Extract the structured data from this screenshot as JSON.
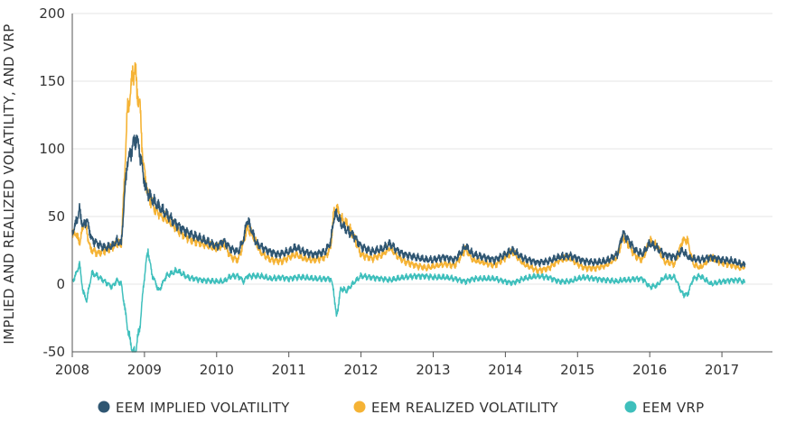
{
  "chart_data": {
    "type": "line",
    "title": "",
    "xlabel": "",
    "ylabel": "IMPLIED AND REALIZED VOLATILITY, AND VRP",
    "xlim": [
      2008.0,
      2017.7
    ],
    "ylim": [
      -50,
      200
    ],
    "x_ticks": [
      {
        "label": "2008",
        "value": 2008.0
      },
      {
        "label": "2009",
        "value": 2009.0
      },
      {
        "label": "2010",
        "value": 2010.0
      },
      {
        "label": "2011",
        "value": 2011.0
      },
      {
        "label": "2012",
        "value": 2012.0
      },
      {
        "label": "2013",
        "value": 2013.0
      },
      {
        "label": "2014",
        "value": 2014.0
      },
      {
        "label": "2015",
        "value": 2015.0
      },
      {
        "label": "2016",
        "value": 2016.0
      },
      {
        "label": "2017",
        "value": 2017.0
      }
    ],
    "y_ticks": [
      -50,
      0,
      50,
      100,
      150,
      200
    ],
    "grid": "horizontal",
    "legend": "bottom",
    "series": [
      {
        "name": "EEM IMPLIED VOLATILITY",
        "color": "#2f5672",
        "points": [
          [
            2008.0,
            38
          ],
          [
            2008.05,
            45
          ],
          [
            2008.1,
            55
          ],
          [
            2008.15,
            42
          ],
          [
            2008.2,
            48
          ],
          [
            2008.27,
            33
          ],
          [
            2008.35,
            30
          ],
          [
            2008.45,
            27
          ],
          [
            2008.55,
            28
          ],
          [
            2008.62,
            32
          ],
          [
            2008.68,
            30
          ],
          [
            2008.72,
            62
          ],
          [
            2008.76,
            90
          ],
          [
            2008.8,
            95
          ],
          [
            2008.85,
            105
          ],
          [
            2008.89,
            108
          ],
          [
            2008.93,
            100
          ],
          [
            2008.97,
            85
          ],
          [
            2009.02,
            70
          ],
          [
            2009.1,
            63
          ],
          [
            2009.2,
            57
          ],
          [
            2009.3,
            52
          ],
          [
            2009.45,
            44
          ],
          [
            2009.6,
            38
          ],
          [
            2009.8,
            33
          ],
          [
            2010.0,
            28
          ],
          [
            2010.1,
            32
          ],
          [
            2010.2,
            26
          ],
          [
            2010.3,
            24
          ],
          [
            2010.38,
            34
          ],
          [
            2010.42,
            48
          ],
          [
            2010.47,
            42
          ],
          [
            2010.55,
            30
          ],
          [
            2010.7,
            25
          ],
          [
            2010.85,
            22
          ],
          [
            2011.0,
            24
          ],
          [
            2011.1,
            27
          ],
          [
            2011.2,
            24
          ],
          [
            2011.35,
            22
          ],
          [
            2011.5,
            24
          ],
          [
            2011.58,
            31
          ],
          [
            2011.62,
            48
          ],
          [
            2011.66,
            52
          ],
          [
            2011.72,
            45
          ],
          [
            2011.8,
            40
          ],
          [
            2011.9,
            36
          ],
          [
            2012.0,
            28
          ],
          [
            2012.15,
            24
          ],
          [
            2012.3,
            26
          ],
          [
            2012.4,
            30
          ],
          [
            2012.5,
            25
          ],
          [
            2012.6,
            22
          ],
          [
            2012.75,
            20
          ],
          [
            2012.9,
            18
          ],
          [
            2013.0,
            18
          ],
          [
            2013.15,
            20
          ],
          [
            2013.3,
            18
          ],
          [
            2013.45,
            28
          ],
          [
            2013.55,
            22
          ],
          [
            2013.7,
            20
          ],
          [
            2013.85,
            18
          ],
          [
            2014.0,
            22
          ],
          [
            2014.1,
            25
          ],
          [
            2014.25,
            19
          ],
          [
            2014.45,
            16
          ],
          [
            2014.6,
            17
          ],
          [
            2014.75,
            20
          ],
          [
            2014.9,
            21
          ],
          [
            2015.0,
            19
          ],
          [
            2015.1,
            17
          ],
          [
            2015.25,
            16
          ],
          [
            2015.4,
            17
          ],
          [
            2015.55,
            22
          ],
          [
            2015.63,
            38
          ],
          [
            2015.7,
            33
          ],
          [
            2015.8,
            25
          ],
          [
            2015.9,
            22
          ],
          [
            2016.0,
            30
          ],
          [
            2016.1,
            27
          ],
          [
            2016.2,
            22
          ],
          [
            2016.35,
            20
          ],
          [
            2016.45,
            25
          ],
          [
            2016.55,
            19
          ],
          [
            2016.7,
            18
          ],
          [
            2016.85,
            20
          ],
          [
            2017.0,
            18
          ],
          [
            2017.15,
            17
          ],
          [
            2017.25,
            15
          ],
          [
            2017.32,
            14
          ]
        ]
      },
      {
        "name": "EEM REALIZED VOLATILITY",
        "color": "#f5b335",
        "points": [
          [
            2008.0,
            36
          ],
          [
            2008.05,
            38
          ],
          [
            2008.1,
            30
          ],
          [
            2008.17,
            48
          ],
          [
            2008.25,
            26
          ],
          [
            2008.35,
            23
          ],
          [
            2008.45,
            25
          ],
          [
            2008.55,
            27
          ],
          [
            2008.62,
            30
          ],
          [
            2008.68,
            29
          ],
          [
            2008.72,
            75
          ],
          [
            2008.76,
            125
          ],
          [
            2008.8,
            140
          ],
          [
            2008.84,
            155
          ],
          [
            2008.87,
            160
          ],
          [
            2008.9,
            142
          ],
          [
            2008.94,
            130
          ],
          [
            2008.98,
            90
          ],
          [
            2009.05,
            66
          ],
          [
            2009.15,
            55
          ],
          [
            2009.25,
            50
          ],
          [
            2009.35,
            46
          ],
          [
            2009.5,
            38
          ],
          [
            2009.65,
            33
          ],
          [
            2009.8,
            30
          ],
          [
            2010.0,
            26
          ],
          [
            2010.1,
            30
          ],
          [
            2010.2,
            20
          ],
          [
            2010.3,
            18
          ],
          [
            2010.38,
            32
          ],
          [
            2010.42,
            42
          ],
          [
            2010.5,
            36
          ],
          [
            2010.6,
            24
          ],
          [
            2010.75,
            18
          ],
          [
            2010.9,
            17
          ],
          [
            2011.0,
            20
          ],
          [
            2011.1,
            22
          ],
          [
            2011.2,
            19
          ],
          [
            2011.35,
            18
          ],
          [
            2011.5,
            20
          ],
          [
            2011.58,
            27
          ],
          [
            2011.62,
            52
          ],
          [
            2011.66,
            57
          ],
          [
            2011.72,
            48
          ],
          [
            2011.8,
            45
          ],
          [
            2011.9,
            35
          ],
          [
            2012.0,
            22
          ],
          [
            2012.15,
            19
          ],
          [
            2012.3,
            22
          ],
          [
            2012.4,
            27
          ],
          [
            2012.5,
            21
          ],
          [
            2012.6,
            17
          ],
          [
            2012.75,
            14
          ],
          [
            2012.9,
            12
          ],
          [
            2013.0,
            13
          ],
          [
            2013.15,
            15
          ],
          [
            2013.3,
            14
          ],
          [
            2013.45,
            26
          ],
          [
            2013.55,
            18
          ],
          [
            2013.7,
            16
          ],
          [
            2013.85,
            14
          ],
          [
            2014.0,
            20
          ],
          [
            2014.1,
            24
          ],
          [
            2014.25,
            15
          ],
          [
            2014.45,
            10
          ],
          [
            2014.6,
            12
          ],
          [
            2014.75,
            18
          ],
          [
            2014.9,
            19
          ],
          [
            2015.0,
            15
          ],
          [
            2015.1,
            12
          ],
          [
            2015.25,
            12
          ],
          [
            2015.4,
            14
          ],
          [
            2015.55,
            20
          ],
          [
            2015.63,
            35
          ],
          [
            2015.7,
            30
          ],
          [
            2015.8,
            21
          ],
          [
            2015.9,
            18
          ],
          [
            2016.0,
            32
          ],
          [
            2016.1,
            28
          ],
          [
            2016.2,
            17
          ],
          [
            2016.35,
            15
          ],
          [
            2016.45,
            32
          ],
          [
            2016.52,
            33
          ],
          [
            2016.6,
            15
          ],
          [
            2016.7,
            12
          ],
          [
            2016.85,
            20
          ],
          [
            2017.0,
            16
          ],
          [
            2017.15,
            14
          ],
          [
            2017.25,
            12
          ],
          [
            2017.32,
            13
          ]
        ]
      },
      {
        "name": "EEM VRP",
        "color": "#3ebfbc",
        "points": [
          [
            2008.0,
            2
          ],
          [
            2008.05,
            7
          ],
          [
            2008.1,
            15
          ],
          [
            2008.15,
            -6
          ],
          [
            2008.2,
            -12
          ],
          [
            2008.27,
            8
          ],
          [
            2008.35,
            6
          ],
          [
            2008.45,
            2
          ],
          [
            2008.55,
            -2
          ],
          [
            2008.62,
            3
          ],
          [
            2008.68,
            0
          ],
          [
            2008.72,
            -15
          ],
          [
            2008.76,
            -30
          ],
          [
            2008.8,
            -42
          ],
          [
            2008.84,
            -50
          ],
          [
            2008.87,
            -52
          ],
          [
            2008.9,
            -42
          ],
          [
            2008.94,
            -30
          ],
          [
            2008.98,
            -5
          ],
          [
            2009.02,
            15
          ],
          [
            2009.05,
            25
          ],
          [
            2009.1,
            8
          ],
          [
            2009.2,
            -5
          ],
          [
            2009.3,
            6
          ],
          [
            2009.45,
            10
          ],
          [
            2009.6,
            5
          ],
          [
            2009.8,
            3
          ],
          [
            2010.0,
            2
          ],
          [
            2010.1,
            2
          ],
          [
            2010.2,
            6
          ],
          [
            2010.3,
            6
          ],
          [
            2010.38,
            2
          ],
          [
            2010.42,
            6
          ],
          [
            2010.5,
            6
          ],
          [
            2010.6,
            6
          ],
          [
            2010.75,
            4
          ],
          [
            2010.9,
            5
          ],
          [
            2011.0,
            4
          ],
          [
            2011.1,
            5
          ],
          [
            2011.2,
            5
          ],
          [
            2011.35,
            4
          ],
          [
            2011.5,
            4
          ],
          [
            2011.58,
            4
          ],
          [
            2011.62,
            -4
          ],
          [
            2011.66,
            -25
          ],
          [
            2011.72,
            -3
          ],
          [
            2011.8,
            -5
          ],
          [
            2011.9,
            1
          ],
          [
            2012.0,
            6
          ],
          [
            2012.15,
            5
          ],
          [
            2012.3,
            4
          ],
          [
            2012.4,
            3
          ],
          [
            2012.5,
            4
          ],
          [
            2012.6,
            5
          ],
          [
            2012.75,
            6
          ],
          [
            2012.9,
            6
          ],
          [
            2013.0,
            5
          ],
          [
            2013.15,
            5
          ],
          [
            2013.3,
            4
          ],
          [
            2013.45,
            2
          ],
          [
            2013.55,
            4
          ],
          [
            2013.7,
            4
          ],
          [
            2013.85,
            4
          ],
          [
            2014.0,
            2
          ],
          [
            2014.1,
            1
          ],
          [
            2014.25,
            4
          ],
          [
            2014.45,
            6
          ],
          [
            2014.6,
            5
          ],
          [
            2014.75,
            2
          ],
          [
            2014.9,
            2
          ],
          [
            2015.0,
            4
          ],
          [
            2015.1,
            5
          ],
          [
            2015.25,
            4
          ],
          [
            2015.4,
            3
          ],
          [
            2015.55,
            2
          ],
          [
            2015.63,
            3
          ],
          [
            2015.7,
            3
          ],
          [
            2015.8,
            4
          ],
          [
            2015.9,
            4
          ],
          [
            2016.0,
            -2
          ],
          [
            2016.1,
            -1
          ],
          [
            2016.2,
            5
          ],
          [
            2016.35,
            5
          ],
          [
            2016.45,
            -7
          ],
          [
            2016.52,
            -8
          ],
          [
            2016.6,
            4
          ],
          [
            2016.7,
            6
          ],
          [
            2016.85,
            0
          ],
          [
            2017.0,
            2
          ],
          [
            2017.15,
            3
          ],
          [
            2017.25,
            3
          ],
          [
            2017.32,
            1
          ]
        ]
      }
    ]
  }
}
